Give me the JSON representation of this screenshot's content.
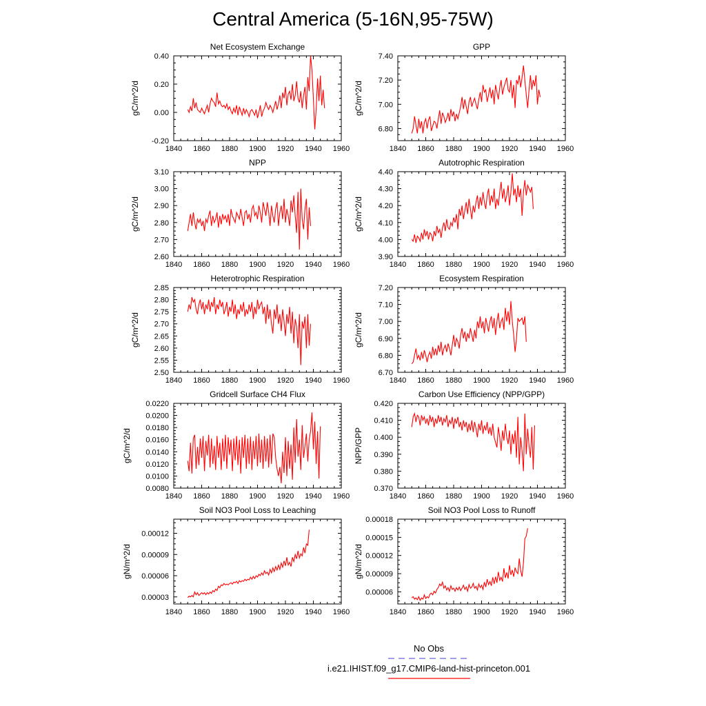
{
  "figure": {
    "title": "Central America (5-16N,95-75W)"
  },
  "legend": [
    {
      "name": "No Obs",
      "color": "#6666dd",
      "style": "dashed"
    },
    {
      "name": "i.e21.IHIST.f09_g17.CMIP6-land-hist-princeton.001",
      "color": "#ff0000",
      "style": "solid"
    }
  ],
  "chart_data": [
    {
      "type": "line",
      "title": "Net Ecosystem Exchange",
      "ylabel": "gC/m^2/d",
      "xlim": [
        1840,
        1960
      ],
      "ylim": [
        -0.2,
        0.4
      ],
      "xticks": [
        1840,
        1860,
        1880,
        1900,
        1920,
        1940,
        1960
      ],
      "yticks": [
        -0.2,
        0.0,
        0.2,
        0.4
      ],
      "ytick_labels": [
        "-0.20",
        "0.00",
        "0.20",
        "0.40"
      ],
      "x_start": 1850,
      "series_color": "#ff0000",
      "y": [
        0.02,
        0.0,
        0.04,
        0.01,
        0.1,
        0.03,
        0.07,
        0.02,
        0.01,
        0.0,
        0.03,
        0.01,
        -0.01,
        0.02,
        0.05,
        0.0,
        0.06,
        0.1,
        0.08,
        0.07,
        0.04,
        0.14,
        0.06,
        0.08,
        0.05,
        0.04,
        0.05,
        0.03,
        0.06,
        0.02,
        0.04,
        0.01,
        -0.01,
        0.03,
        0.0,
        0.05,
        -0.02,
        0.04,
        0.01,
        -0.02,
        0.03,
        -0.01,
        0.02,
        0.0,
        -0.03,
        0.01,
        0.02,
        0.0,
        -0.02,
        0.02,
        -0.04,
        0.0,
        0.05,
        -0.03,
        0.01,
        0.03,
        0.07,
        0.04,
        0.02,
        0.05,
        0.03,
        0.0,
        0.04,
        0.08,
        0.02,
        0.06,
        0.12,
        0.03,
        0.14,
        0.1,
        0.18,
        0.05,
        0.13,
        0.15,
        0.09,
        0.2,
        0.08,
        0.12,
        0.22,
        0.1,
        0.07,
        0.15,
        0.03,
        0.12,
        0.18,
        0.02,
        0.25,
        0.15,
        0.4,
        0.3,
        0.1,
        -0.12,
        0.02,
        0.24,
        0.08,
        0.26,
        0.05,
        0.16,
        0.03
      ]
    },
    {
      "type": "line",
      "title": "GPP",
      "ylabel": "gC/m^2/d",
      "xlim": [
        1840,
        1960
      ],
      "ylim": [
        6.7,
        7.4
      ],
      "xticks": [
        1840,
        1860,
        1880,
        1900,
        1920,
        1940,
        1960
      ],
      "yticks": [
        6.8,
        7.0,
        7.2,
        7.4
      ],
      "ytick_labels": [
        "6.80",
        "7.00",
        "7.20",
        "7.40"
      ],
      "x_start": 1850,
      "series_color": "#ff0000",
      "y": [
        6.76,
        6.8,
        6.9,
        6.83,
        6.76,
        6.88,
        6.8,
        6.86,
        6.76,
        6.85,
        6.88,
        6.8,
        6.87,
        6.9,
        6.78,
        6.82,
        6.86,
        6.85,
        6.8,
        6.88,
        6.95,
        6.84,
        6.93,
        6.9,
        6.85,
        6.88,
        6.93,
        6.86,
        6.96,
        6.9,
        6.94,
        6.86,
        6.92,
        6.88,
        6.93,
        6.98,
        7.06,
        6.96,
        7.04,
        6.98,
        6.92,
        7.02,
        7.06,
        6.98,
        7.02,
        7.05,
        7.0,
        6.96,
        7.04,
        7.1,
        7.02,
        7.16,
        7.1,
        7.12,
        7.02,
        7.08,
        7.14,
        7.05,
        7.12,
        7.0,
        7.16,
        7.1,
        7.04,
        7.14,
        7.2,
        7.08,
        7.14,
        7.18,
        7.22,
        7.12,
        7.1,
        7.2,
        7.05,
        7.16,
        6.97,
        7.2,
        7.17,
        7.24,
        7.14,
        7.22,
        7.32,
        7.2,
        7.08,
        6.97,
        7.12,
        7.24,
        7.12,
        7.2,
        7.15,
        7.24,
        7.0,
        7.12,
        7.06
      ]
    },
    {
      "type": "line",
      "title": "NPP",
      "ylabel": "gC/m^2/d",
      "xlim": [
        1840,
        1960
      ],
      "ylim": [
        2.6,
        3.1
      ],
      "xticks": [
        1840,
        1860,
        1880,
        1900,
        1920,
        1940,
        1960
      ],
      "yticks": [
        2.6,
        2.7,
        2.8,
        2.9,
        3.0,
        3.1
      ],
      "ytick_labels": [
        "2.60",
        "2.70",
        "2.80",
        "2.90",
        "3.00",
        "3.10"
      ],
      "x_start": 1850,
      "series_color": "#ff0000",
      "y": [
        2.75,
        2.8,
        2.85,
        2.78,
        2.86,
        2.8,
        2.76,
        2.82,
        2.8,
        2.82,
        2.78,
        2.81,
        2.75,
        2.82,
        2.8,
        2.84,
        2.87,
        2.78,
        2.84,
        2.8,
        2.82,
        2.86,
        2.77,
        2.84,
        2.79,
        2.85,
        2.82,
        2.84,
        2.8,
        2.85,
        2.78,
        2.88,
        2.84,
        2.82,
        2.8,
        2.86,
        2.84,
        2.82,
        2.88,
        2.83,
        2.78,
        2.86,
        2.87,
        2.82,
        2.85,
        2.8,
        2.88,
        2.9,
        2.84,
        2.86,
        2.82,
        2.9,
        2.86,
        2.8,
        2.92,
        2.88,
        2.84,
        2.92,
        2.86,
        2.78,
        2.9,
        2.84,
        2.8,
        2.88,
        2.92,
        2.78,
        2.86,
        2.9,
        2.82,
        2.94,
        2.8,
        2.88,
        2.84,
        2.78,
        2.93,
        2.86,
        2.96,
        2.84,
        2.74,
        2.98,
        2.64,
        3.0,
        2.82,
        2.76,
        2.88,
        2.94,
        2.7,
        2.89,
        2.78
      ]
    },
    {
      "type": "line",
      "title": "Autotrophic Respiration",
      "ylabel": "gC/m^2/d",
      "xlim": [
        1840,
        1960
      ],
      "ylim": [
        3.9,
        4.4
      ],
      "xticks": [
        1840,
        1860,
        1880,
        1900,
        1920,
        1940,
        1960
      ],
      "yticks": [
        3.9,
        4.0,
        4.1,
        4.2,
        4.3,
        4.4
      ],
      "ytick_labels": [
        "3.90",
        "4.00",
        "4.10",
        "4.20",
        "4.30",
        "4.40"
      ],
      "x_start": 1850,
      "series_color": "#ff0000",
      "y": [
        4.0,
        3.99,
        4.03,
        3.98,
        4.02,
        4.01,
        3.99,
        4.04,
        4.0,
        4.06,
        4.02,
        4.05,
        4.0,
        4.04,
        4.03,
        3.99,
        4.05,
        4.02,
        4.08,
        4.04,
        4.06,
        4.01,
        4.07,
        4.1,
        4.05,
        4.12,
        4.07,
        4.06,
        4.1,
        4.08,
        4.13,
        4.1,
        4.15,
        4.06,
        4.18,
        4.14,
        4.2,
        4.12,
        4.17,
        4.22,
        4.15,
        4.24,
        4.18,
        4.12,
        4.2,
        4.16,
        4.22,
        4.26,
        4.18,
        4.25,
        4.2,
        4.28,
        4.22,
        4.18,
        4.26,
        4.3,
        4.2,
        4.26,
        4.22,
        4.3,
        4.18,
        4.24,
        4.2,
        4.28,
        4.34,
        4.24,
        4.3,
        4.22,
        4.26,
        4.32,
        4.2,
        4.28,
        4.39,
        4.26,
        4.3,
        4.22,
        4.32,
        4.25,
        4.3,
        4.14,
        4.28,
        4.35,
        4.26,
        4.32,
        4.3,
        4.28,
        4.31,
        4.18
      ]
    },
    {
      "type": "line",
      "title": "Heterotrophic Respiration",
      "ylabel": "gC/m^2/d",
      "xlim": [
        1840,
        1960
      ],
      "ylim": [
        2.5,
        2.85
      ],
      "xticks": [
        1840,
        1860,
        1880,
        1900,
        1920,
        1940,
        1960
      ],
      "yticks": [
        2.5,
        2.55,
        2.6,
        2.65,
        2.7,
        2.75,
        2.8,
        2.85
      ],
      "ytick_labels": [
        "2.50",
        "2.55",
        "2.60",
        "2.65",
        "2.70",
        "2.75",
        "2.80",
        "2.85"
      ],
      "x_start": 1850,
      "series_color": "#ff0000",
      "y": [
        2.75,
        2.78,
        2.76,
        2.81,
        2.79,
        2.8,
        2.76,
        2.74,
        2.78,
        2.8,
        2.76,
        2.79,
        2.74,
        2.78,
        2.76,
        2.8,
        2.75,
        2.79,
        2.77,
        2.81,
        2.74,
        2.78,
        2.76,
        2.8,
        2.77,
        2.79,
        2.74,
        2.76,
        2.79,
        2.73,
        2.77,
        2.75,
        2.8,
        2.74,
        2.78,
        2.72,
        2.76,
        2.74,
        2.78,
        2.75,
        2.79,
        2.73,
        2.76,
        2.74,
        2.78,
        2.75,
        2.79,
        2.72,
        2.77,
        2.74,
        2.8,
        2.76,
        2.78,
        2.79,
        2.74,
        2.77,
        2.7,
        2.78,
        2.72,
        2.76,
        2.7,
        2.66,
        2.76,
        2.72,
        2.78,
        2.7,
        2.74,
        2.67,
        2.76,
        2.71,
        2.65,
        2.74,
        2.7,
        2.77,
        2.66,
        2.75,
        2.62,
        2.72,
        2.69,
        2.6,
        2.74,
        2.53,
        2.71,
        2.68,
        2.73,
        2.6,
        2.74,
        2.61,
        2.7
      ]
    },
    {
      "type": "line",
      "title": "Ecosystem Respiration",
      "ylabel": "gC/m^2/d",
      "xlim": [
        1840,
        1960
      ],
      "ylim": [
        6.7,
        7.2
      ],
      "xticks": [
        1840,
        1860,
        1880,
        1900,
        1920,
        1940,
        1960
      ],
      "yticks": [
        6.7,
        6.8,
        6.9,
        7.0,
        7.1,
        7.2
      ],
      "ytick_labels": [
        "6.70",
        "6.80",
        "6.90",
        "7.00",
        "7.10",
        "7.20"
      ],
      "x_start": 1850,
      "series_color": "#ff0000",
      "y": [
        6.75,
        6.76,
        6.8,
        6.84,
        6.78,
        6.8,
        6.77,
        6.82,
        6.78,
        6.83,
        6.8,
        6.76,
        6.8,
        6.82,
        6.78,
        6.85,
        6.8,
        6.84,
        6.8,
        6.86,
        6.82,
        6.88,
        6.8,
        6.84,
        6.86,
        6.82,
        6.87,
        6.84,
        6.8,
        6.86,
        6.92,
        6.85,
        6.9,
        6.88,
        6.84,
        6.92,
        6.96,
        6.9,
        6.94,
        6.88,
        6.93,
        6.9,
        6.96,
        6.92,
        6.88,
        6.95,
        6.9,
        7.0,
        6.96,
        7.03,
        6.96,
        7.0,
        6.93,
        7.02,
        6.98,
        6.94,
        7.0,
        7.03,
        6.96,
        7.02,
        6.92,
        7.0,
        7.05,
        6.96,
        7.0,
        7.02,
        6.95,
        7.08,
        7.0,
        7.06,
        6.98,
        7.12,
        7.0,
        6.92,
        6.82,
        6.9,
        7.02,
        7.0,
        7.01,
        7.02,
        6.98,
        7.03,
        6.88
      ]
    },
    {
      "type": "line",
      "title": "Gridcell Surface CH4 Flux",
      "ylabel": "gC/m^2/d",
      "xlim": [
        1840,
        1960
      ],
      "ylim": [
        0.008,
        0.022
      ],
      "xticks": [
        1840,
        1860,
        1880,
        1900,
        1920,
        1940,
        1960
      ],
      "yticks": [
        0.008,
        0.01,
        0.012,
        0.014,
        0.016,
        0.018,
        0.02,
        0.022
      ],
      "ytick_labels": [
        "0.0080",
        "0.0100",
        "0.0120",
        "0.0140",
        "0.0160",
        "0.0180",
        "0.0200",
        "0.0220"
      ],
      "x_start": 1850,
      "series_color": "#ff0000",
      "y": [
        0.0125,
        0.0108,
        0.0155,
        0.0104,
        0.0162,
        0.0168,
        0.0112,
        0.0148,
        0.0118,
        0.0162,
        0.013,
        0.0166,
        0.0108,
        0.0158,
        0.0134,
        0.0168,
        0.0114,
        0.0162,
        0.012,
        0.015,
        0.011,
        0.0166,
        0.013,
        0.0155,
        0.011,
        0.0162,
        0.0124,
        0.0168,
        0.0112,
        0.0164,
        0.0135,
        0.016,
        0.0108,
        0.0162,
        0.0126,
        0.0166,
        0.0118,
        0.016,
        0.0104,
        0.0164,
        0.013,
        0.0168,
        0.0112,
        0.0162,
        0.012,
        0.0165,
        0.011,
        0.0158,
        0.0128,
        0.0166,
        0.0116,
        0.017,
        0.0122,
        0.016,
        0.0112,
        0.0166,
        0.0124,
        0.0162,
        0.0114,
        0.0168,
        0.012,
        0.017,
        0.0164,
        0.013,
        0.0112,
        0.01,
        0.0115,
        0.0088,
        0.014,
        0.0105,
        0.0164,
        0.01,
        0.0158,
        0.0112,
        0.0152,
        0.0094,
        0.018,
        0.0122,
        0.0194,
        0.0132,
        0.016,
        0.011,
        0.0184,
        0.013,
        0.015,
        0.017,
        0.0124,
        0.016,
        0.0174,
        0.0205,
        0.0144,
        0.019,
        0.012,
        0.0174,
        0.0096,
        0.0182
      ]
    },
    {
      "type": "line",
      "title": "Carbon Use Efficiency (NPP/GPP)",
      "ylabel": "NPP/GPP",
      "xlim": [
        1840,
        1960
      ],
      "ylim": [
        0.37,
        0.42
      ],
      "xticks": [
        1840,
        1860,
        1880,
        1900,
        1920,
        1940,
        1960
      ],
      "yticks": [
        0.37,
        0.38,
        0.39,
        0.4,
        0.41,
        0.42
      ],
      "ytick_labels": [
        "0.370",
        "0.380",
        "0.390",
        "0.400",
        "0.410",
        "0.420"
      ],
      "x_start": 1850,
      "series_color": "#ff0000",
      "y": [
        0.406,
        0.412,
        0.414,
        0.409,
        0.413,
        0.412,
        0.407,
        0.413,
        0.41,
        0.412,
        0.408,
        0.411,
        0.407,
        0.413,
        0.409,
        0.412,
        0.406,
        0.411,
        0.408,
        0.413,
        0.409,
        0.412,
        0.407,
        0.411,
        0.409,
        0.413,
        0.406,
        0.41,
        0.408,
        0.412,
        0.405,
        0.411,
        0.408,
        0.412,
        0.406,
        0.409,
        0.404,
        0.41,
        0.406,
        0.409,
        0.403,
        0.408,
        0.404,
        0.41,
        0.403,
        0.409,
        0.405,
        0.4,
        0.408,
        0.404,
        0.41,
        0.402,
        0.407,
        0.404,
        0.409,
        0.402,
        0.406,
        0.401,
        0.408,
        0.4,
        0.397,
        0.394,
        0.406,
        0.4,
        0.392,
        0.404,
        0.398,
        0.408,
        0.4,
        0.396,
        0.404,
        0.39,
        0.402,
        0.396,
        0.404,
        0.388,
        0.412,
        0.384,
        0.4,
        0.392,
        0.38,
        0.414,
        0.39,
        0.405,
        0.395,
        0.388,
        0.406,
        0.381,
        0.407
      ]
    },
    {
      "type": "line",
      "title": "Soil NO3 Pool Loss to Leaching",
      "ylabel": "gN/m^2/d",
      "xlim": [
        1840,
        1960
      ],
      "ylim": [
        2e-05,
        0.00014
      ],
      "xticks": [
        1840,
        1860,
        1880,
        1900,
        1920,
        1940,
        1960
      ],
      "yticks": [
        3e-05,
        6e-05,
        9e-05,
        0.00012
      ],
      "ytick_labels": [
        "0.00003",
        "0.00006",
        "0.00009",
        "0.00012"
      ],
      "x_start": 1850,
      "series_color": "#ff0000",
      "y": [
        2.9e-05,
        3.1e-05,
        3e-05,
        3.2e-05,
        3e-05,
        3.7e-05,
        3.3e-05,
        3.6e-05,
        3.2e-05,
        3.4e-05,
        3.6e-05,
        3.4e-05,
        3.6e-05,
        3.3e-05,
        3.6e-05,
        3.4e-05,
        3.7e-05,
        3.5e-05,
        3.9e-05,
        3.7e-05,
        4.1e-05,
        3.9e-05,
        4.5e-05,
        4.3e-05,
        4.7e-05,
        4.6e-05,
        4.9e-05,
        4.7e-05,
        4.8e-05,
        4.7e-05,
        4.9e-05,
        5e-05,
        4.8e-05,
        5.1e-05,
        5e-05,
        5.2e-05,
        4.9e-05,
        5.3e-05,
        5.1e-05,
        5.3e-05,
        5.2e-05,
        5.5e-05,
        5.3e-05,
        5.5e-05,
        5.4e-05,
        5.8e-05,
        5.5e-05,
        5.9e-05,
        5.6e-05,
        6e-05,
        5.8e-05,
        6.2e-05,
        6e-05,
        6.4e-05,
        6.1e-05,
        6.7e-05,
        6.3e-05,
        6.5e-05,
        6.1e-05,
        6.9e-05,
        6.4e-05,
        7.1e-05,
        6.6e-05,
        7.3e-05,
        6.8e-05,
        7.5e-05,
        6.9e-05,
        7.8e-05,
        7.2e-05,
        8.1e-05,
        7.4e-05,
        8.6e-05,
        7.5e-05,
        7.9e-05,
        7.3e-05,
        8.6e-05,
        8e-05,
        9e-05,
        8.4e-05,
        9.5e-05,
        8.5e-05,
        9.1e-05,
        8.8e-05,
        0.0001,
        9.2e-05,
        0.000105,
        0.000103,
        0.000125
      ]
    },
    {
      "type": "line",
      "title": "Soil NO3 Pool Loss to Runoff",
      "ylabel": "gN/m^2/d",
      "xlim": [
        1840,
        1960
      ],
      "ylim": [
        4e-05,
        0.00018
      ],
      "xticks": [
        1840,
        1860,
        1880,
        1900,
        1920,
        1940,
        1960
      ],
      "yticks": [
        6e-05,
        9e-05,
        0.00012,
        0.00015,
        0.00018
      ],
      "ytick_labels": [
        "0.00006",
        "0.00009",
        "0.00012",
        "0.00015",
        "0.00018"
      ],
      "x_start": 1850,
      "series_color": "#ff0000",
      "y": [
        5e-05,
        5.2e-05,
        4.8e-05,
        5e-05,
        4.7e-05,
        5.2e-05,
        4.6e-05,
        5e-05,
        4.8e-05,
        5.5e-05,
        4.9e-05,
        5.2e-05,
        5e-05,
        5.6e-05,
        5.8e-05,
        5.5e-05,
        6.1e-05,
        5.8e-05,
        6.4e-05,
        6.7e-05,
        7.3e-05,
        7e-05,
        7.6e-05,
        6.6e-05,
        7e-05,
        6.3e-05,
        6.7e-05,
        6.1e-05,
        7e-05,
        6.4e-05,
        6.6e-05,
        6.1e-05,
        6.7e-05,
        6.3e-05,
        6.8e-05,
        6.2e-05,
        6.6e-05,
        7.1e-05,
        6.4e-05,
        6.8e-05,
        6.1e-05,
        7.2e-05,
        6.6e-05,
        6.8e-05,
        7.4e-05,
        6.6e-05,
        6.9e-05,
        6.3e-05,
        7.3e-05,
        6.7e-05,
        7.1e-05,
        6.4e-05,
        7.6e-05,
        6.8e-05,
        8.1e-05,
        7.2e-05,
        7.7e-05,
        7e-05,
        8.4e-05,
        7.3e-05,
        8.5e-05,
        7.5e-05,
        9.3e-05,
        7.9e-05,
        8.4e-05,
        7.7e-05,
        9.9e-05,
        8.3e-05,
        9.2e-05,
        8.2e-05,
        0.000104,
        8.8e-05,
        9.6e-05,
        8.5e-05,
        0.0001,
        9.3e-05,
        9e-05,
        0.000115,
        9.5e-05,
        8.5e-05,
        0.000108,
        0.000148,
        0.000152,
        0.000165
      ]
    }
  ]
}
